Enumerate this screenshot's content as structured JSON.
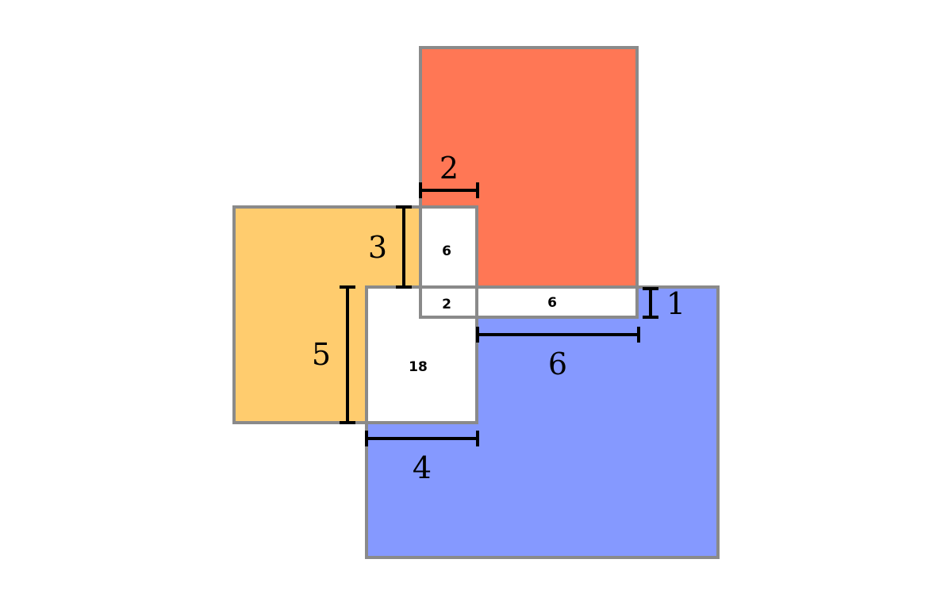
{
  "colors": {
    "red_rect": "#ff7755",
    "yellow_rect": "#ffcc6e",
    "blue_rect": "#8599ff",
    "overlap": "#ffffff",
    "outline": "#8a8a8a"
  },
  "regions": {
    "yellow_red_overlap": "6",
    "center_overlap": "2",
    "red_blue_overlap": "6",
    "yellow_blue_overlap": "18"
  },
  "dimensions": {
    "top_width": "2",
    "left_height": "3",
    "yellow_blue_height": "5",
    "right_height": "1",
    "right_width": "6",
    "bottom_width": "4"
  }
}
